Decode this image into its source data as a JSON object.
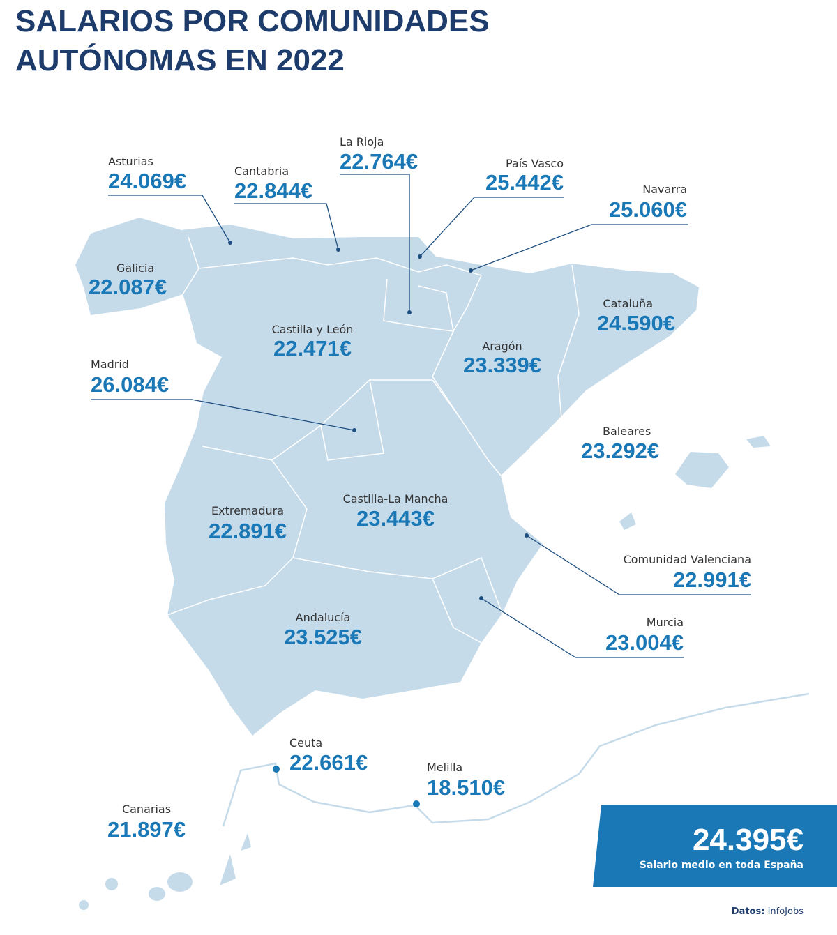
{
  "title": [
    "SALARIOS POR COMUNIDADES",
    "AUTÓNOMAS EN 2022"
  ],
  "regions": [
    {
      "name": "Asturias",
      "salary": "24.069€"
    },
    {
      "name": "Cantabria",
      "salary": "22.844€"
    },
    {
      "name": "La Rioja",
      "salary": "22.764€"
    },
    {
      "name": "País Vasco",
      "salary": "25.442€"
    },
    {
      "name": "Navarra",
      "salary": "25.060€"
    },
    {
      "name": "Galicia",
      "salary": "22.087€"
    },
    {
      "name": "Castilla y León",
      "salary": "22.471€"
    },
    {
      "name": "Cataluña",
      "salary": "24.590€"
    },
    {
      "name": "Aragón",
      "salary": "23.339€"
    },
    {
      "name": "Madrid",
      "salary": "26.084€"
    },
    {
      "name": "Baleares",
      "salary": "23.292€"
    },
    {
      "name": "Castilla-La Mancha",
      "salary": "23.443€"
    },
    {
      "name": "Extremadura",
      "salary": "22.891€"
    },
    {
      "name": "Comunidad Valenciana",
      "salary": "22.991€"
    },
    {
      "name": "Andalucía",
      "salary": "23.525€"
    },
    {
      "name": "Murcia",
      "salary": "23.004€"
    },
    {
      "name": "Ceuta",
      "salary": "22.661€"
    },
    {
      "name": "Melilla",
      "salary": "18.510€"
    },
    {
      "name": "Canarias",
      "salary": "21.897€"
    }
  ],
  "average": {
    "value": "24.395€",
    "label": "Salario medio en toda España"
  },
  "source": {
    "label": "Datos:",
    "name": "InfoJobs"
  }
}
